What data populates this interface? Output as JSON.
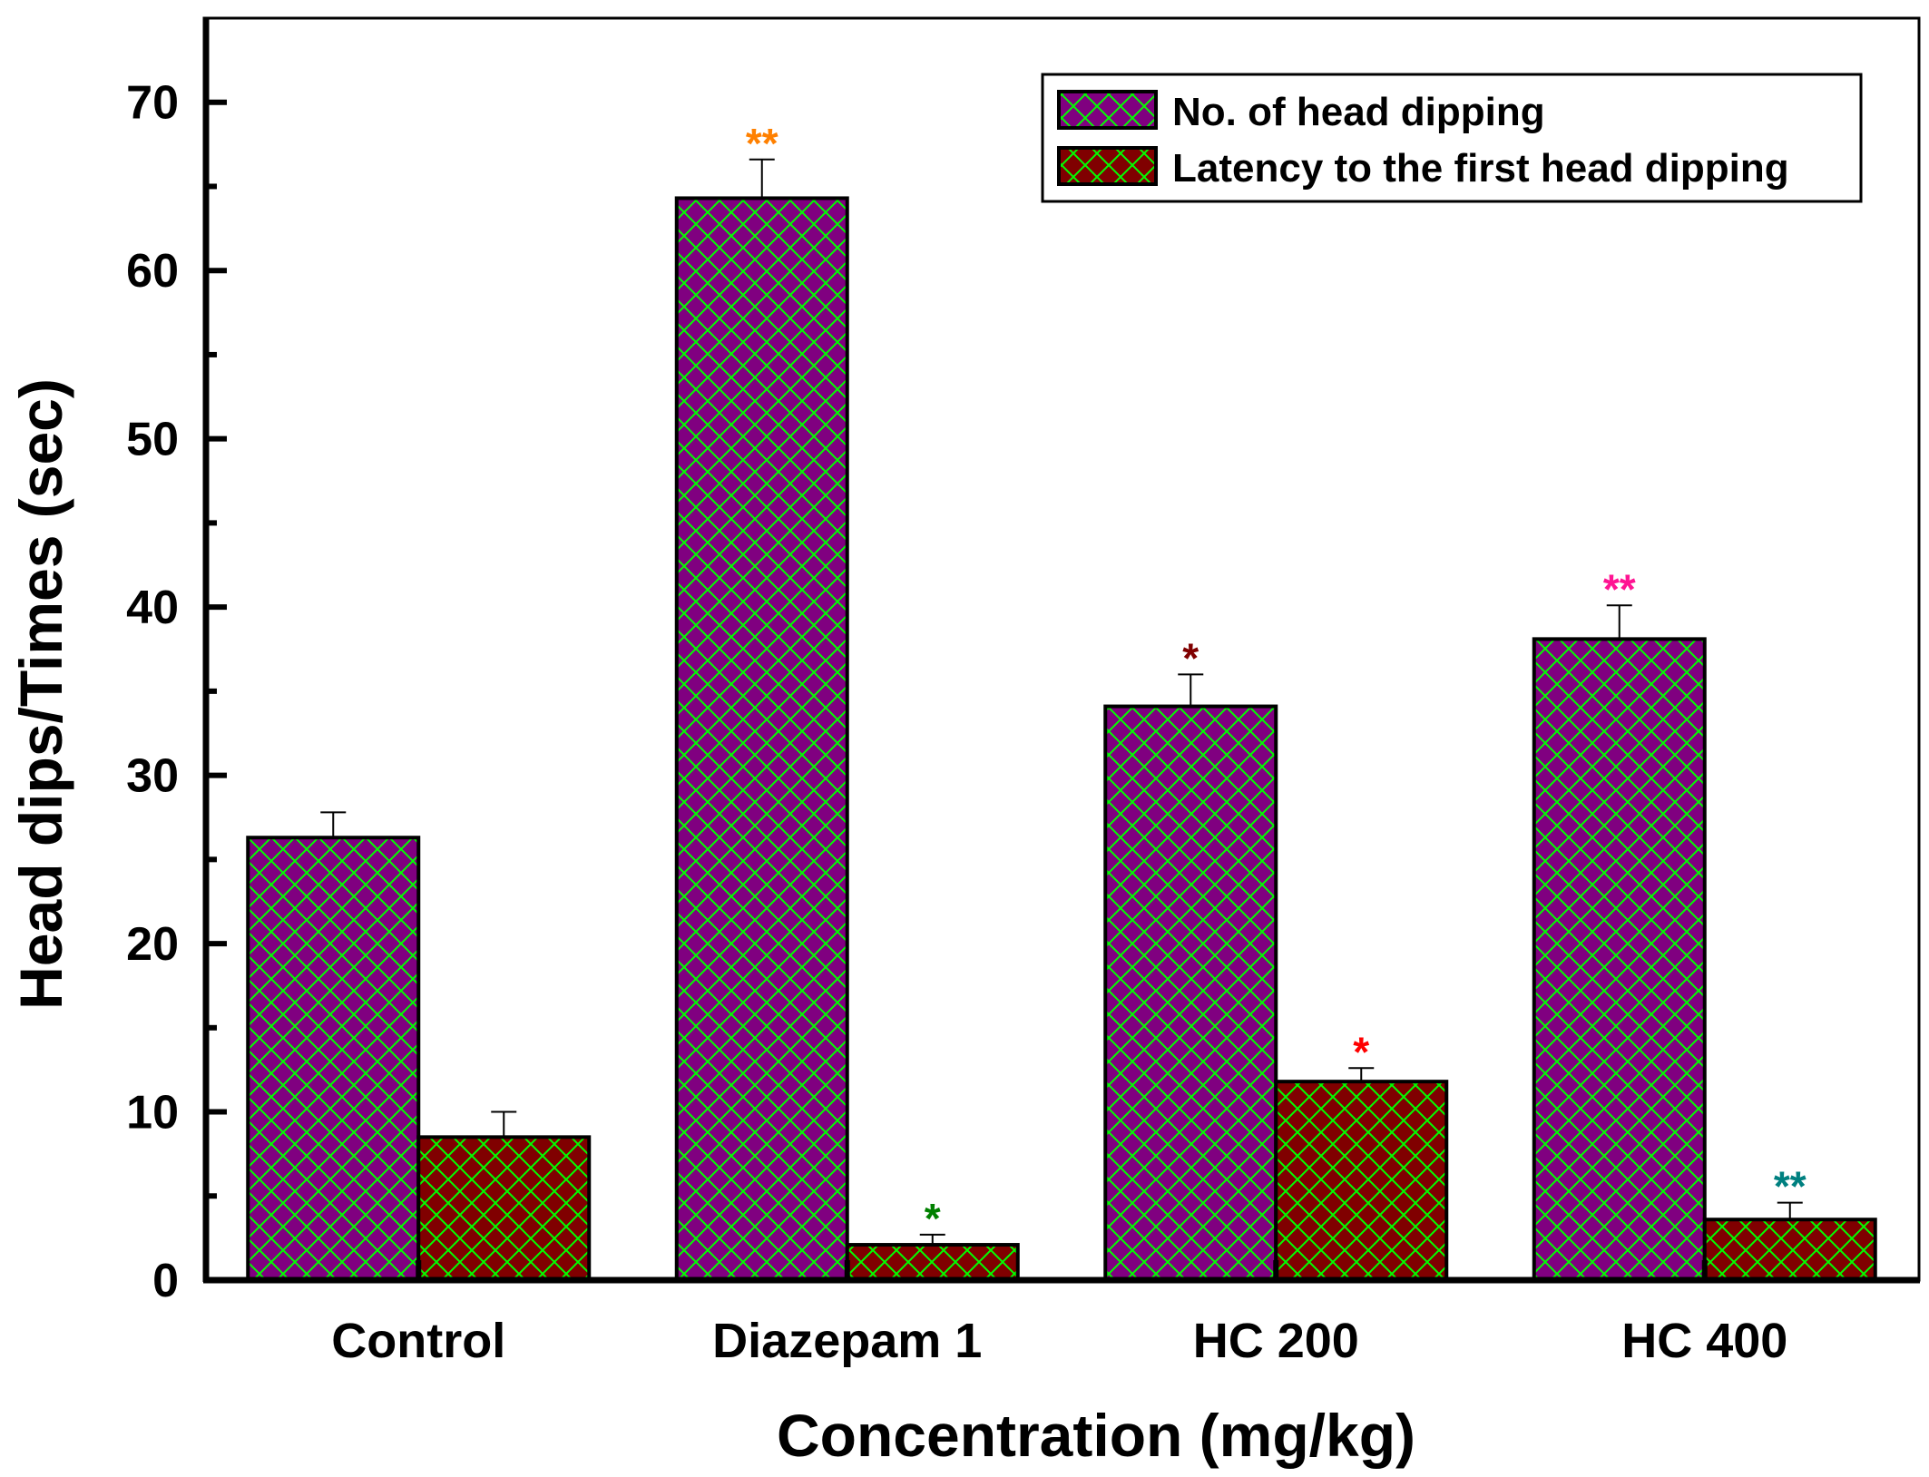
{
  "chart_data": {
    "type": "bar",
    "title": "",
    "xlabel": "Concentration (mg/kg)",
    "ylabel": "Head dips/Times (sec)",
    "ylim": [
      0,
      75
    ],
    "yticks": [
      0,
      10,
      20,
      30,
      40,
      50,
      60,
      70
    ],
    "grid": false,
    "legend_position": "top-right",
    "categories": [
      "Control",
      "Diazepam 1",
      "HC 200",
      "HC 400"
    ],
    "series": [
      {
        "name": "No. of head dipping",
        "fill": "#800080",
        "hatch": "#00FF00",
        "values": [
          26.3,
          64.3,
          34.1,
          38.1
        ],
        "errors": [
          1.5,
          2.3,
          1.9,
          2.0
        ],
        "annotations": [
          "",
          "**",
          "*",
          "**"
        ],
        "annotation_colors": [
          "",
          "#FF8000",
          "#800000",
          "#FF1493"
        ]
      },
      {
        "name": "Latency to the first head dipping",
        "fill": "#800000",
        "hatch": "#00FF00",
        "values": [
          8.5,
          2.1,
          11.8,
          3.6
        ],
        "errors": [
          1.5,
          0.6,
          0.8,
          1.0
        ],
        "annotations": [
          "",
          "*",
          "*",
          "**"
        ],
        "annotation_colors": [
          "",
          "#008000",
          "#FF0000",
          "#008080"
        ]
      }
    ]
  }
}
